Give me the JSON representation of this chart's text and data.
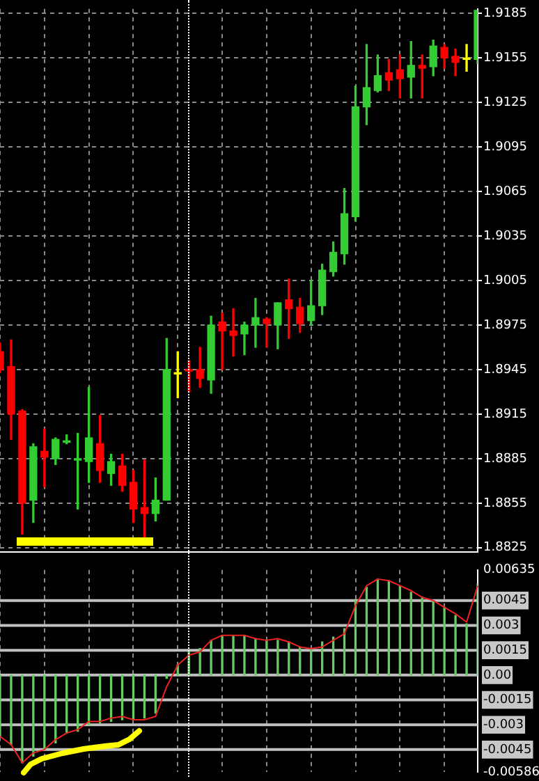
{
  "chart_data": [
    {
      "type": "candlestick",
      "categories": [
        null,
        null,
        null,
        null,
        null,
        null,
        null,
        null,
        null,
        null,
        null,
        null,
        null,
        null,
        null,
        null,
        null,
        null,
        null,
        null,
        null,
        null,
        null,
        null,
        null,
        null,
        null,
        null,
        null,
        null,
        null,
        null,
        null,
        null,
        null,
        null,
        null,
        null,
        null,
        null,
        null,
        null,
        null,
        null
      ],
      "ohlc": [
        [
          1.8957,
          1.8963,
          1.8943,
          1.8945
        ],
        [
          1.8947,
          1.8965,
          1.8898,
          1.8915
        ],
        [
          1.8917,
          1.8918,
          1.8834,
          1.8855
        ],
        [
          1.8857,
          1.8895,
          1.8842,
          1.8893
        ],
        [
          1.889,
          1.8905,
          1.8866,
          1.8886
        ],
        [
          1.8885,
          1.8899,
          1.8881,
          1.8898
        ],
        [
          1.8896,
          1.8901,
          1.8895,
          1.8897
        ],
        [
          1.8884,
          1.8902,
          1.8851,
          1.8885
        ],
        [
          1.8883,
          1.8933,
          1.8869,
          1.8899
        ],
        [
          1.8895,
          1.8914,
          1.8869,
          1.8877
        ],
        [
          1.8875,
          1.8888,
          1.8867,
          1.8883
        ],
        [
          1.888,
          1.8888,
          1.8863,
          1.8867
        ],
        [
          1.8869,
          1.8877,
          1.8842,
          1.8851
        ],
        [
          1.8852,
          1.8884,
          1.8831,
          1.8848
        ],
        [
          1.8848,
          1.8872,
          1.8843,
          1.8857
        ],
        [
          1.8857,
          1.8966,
          1.8857,
          1.8945
        ],
        [
          1.8942,
          1.8957,
          1.8926,
          1.8942
        ],
        [
          1.8945,
          1.8951,
          1.893,
          1.8944
        ],
        [
          1.8945,
          1.896,
          1.8933,
          1.8939
        ],
        [
          1.8938,
          1.8981,
          1.8929,
          1.8975
        ],
        [
          1.8977,
          1.8983,
          1.8945,
          1.8971
        ],
        [
          1.8971,
          1.8986,
          1.8954,
          1.8968
        ],
        [
          1.8969,
          1.8977,
          1.8955,
          1.8975
        ],
        [
          1.8975,
          1.8993,
          1.896,
          1.898
        ],
        [
          1.8979,
          1.898,
          1.896,
          1.8976
        ],
        [
          1.8975,
          1.899,
          1.8959,
          1.899
        ],
        [
          1.8992,
          1.9006,
          1.8966,
          1.8986
        ],
        [
          1.8987,
          1.8993,
          1.897,
          1.8976
        ],
        [
          1.8978,
          1.9005,
          1.8975,
          1.8988
        ],
        [
          1.8988,
          1.9016,
          1.8982,
          1.9012
        ],
        [
          1.9011,
          1.9031,
          1.9008,
          1.9024
        ],
        [
          1.9023,
          1.9067,
          1.9016,
          1.905
        ],
        [
          1.9048,
          1.9136,
          1.9045,
          1.9122
        ],
        [
          1.9122,
          1.9164,
          1.911,
          1.9135
        ],
        [
          1.9133,
          1.9157,
          1.9132,
          1.9143
        ],
        [
          1.9145,
          1.9154,
          1.9133,
          1.914
        ],
        [
          1.9147,
          1.9157,
          1.9128,
          1.9141
        ],
        [
          1.9142,
          1.9166,
          1.9128,
          1.915
        ],
        [
          1.915,
          1.9157,
          1.9128,
          1.9148
        ],
        [
          1.9149,
          1.9167,
          1.9143,
          1.9163
        ],
        [
          1.9162,
          1.9164,
          1.9148,
          1.9155
        ],
        [
          1.9156,
          1.9161,
          1.9143,
          1.9152
        ],
        [
          1.9154,
          1.9164,
          1.9146,
          1.9154
        ],
        [
          1.9154,
          1.9187,
          1.9151,
          1.9187
        ]
      ],
      "colors": [
        "#ff0000",
        "#ff0000",
        "#ff0000",
        "#33cc33",
        "#ff0000",
        "#33cc33",
        "#33cc33",
        "#33cc33",
        "#33cc33",
        "#ff0000",
        "#33cc33",
        "#ff0000",
        "#ff0000",
        "#ff0000",
        "#33cc33",
        "#33cc33",
        "#ffff00",
        "#ff0000",
        "#ff0000",
        "#33cc33",
        "#ff0000",
        "#ff0000",
        "#33cc33",
        "#33cc33",
        "#ff0000",
        "#33cc33",
        "#ff0000",
        "#ff0000",
        "#33cc33",
        "#33cc33",
        "#33cc33",
        "#33cc33",
        "#33cc33",
        "#33cc33",
        "#33cc33",
        "#ff0000",
        "#ff0000",
        "#33cc33",
        "#ff0000",
        "#33cc33",
        "#ff0000",
        "#ff0000",
        "#ffff00",
        "#33cc33"
      ],
      "ylim": [
        1.8822,
        1.9188
      ],
      "yticks": [
        1.8825,
        1.8855,
        1.8885,
        1.8915,
        1.8945,
        1.8975,
        1.9005,
        1.9035,
        1.9065,
        1.9095,
        1.9125,
        1.9155,
        1.9185
      ],
      "grid": true,
      "tick_labels": "y"
    },
    {
      "type": "bar",
      "categories": [
        null,
        null,
        null,
        null,
        null,
        null,
        null,
        null,
        null,
        null,
        null,
        null,
        null,
        null,
        null,
        null,
        null,
        null,
        null,
        null,
        null,
        null,
        null,
        null,
        null,
        null,
        null,
        null,
        null,
        null,
        null,
        null,
        null,
        null,
        null,
        null,
        null,
        null,
        null,
        null,
        null,
        null,
        null,
        null
      ],
      "series": [
        {
          "color": "#66cc66",
          "values": [
            -0.0037,
            -0.0042,
            -0.0053,
            -0.0049,
            -0.0045,
            -0.0041,
            -0.0035,
            -0.0034,
            -0.003,
            -0.0029,
            -0.0028,
            -0.0027,
            -0.0027,
            -0.0026,
            -0.0023,
            -0.0002,
            0.0006,
            0.0014,
            0.0016,
            0.0021,
            0.0024,
            0.0024,
            0.0024,
            0.0022,
            0.0021,
            0.0021,
            0.002,
            0.0017,
            0.0016,
            0.002,
            0.0023,
            0.0028,
            0.0045,
            0.0053,
            0.0058,
            0.0057,
            0.0054,
            0.005,
            0.0047,
            0.0045,
            0.0041,
            0.0036,
            0.0031,
            0.0055
          ]
        },
        {
          "type": "line",
          "color": "#ee2222",
          "values": [
            -0.0037,
            -0.0042,
            -0.0053,
            -0.0047,
            -0.0045,
            -0.0039,
            -0.0035,
            -0.0033,
            -0.0028,
            -0.0028,
            -0.0026,
            -0.0025,
            -0.0027,
            -0.0027,
            -0.0025,
            -0.0007,
            0.0006,
            0.0012,
            0.0014,
            0.0021,
            0.0024,
            0.0024,
            0.0024,
            0.0022,
            0.0021,
            0.0022,
            0.002,
            0.0017,
            0.0016,
            0.0017,
            0.0021,
            0.0025,
            0.0042,
            0.0054,
            0.0058,
            0.0057,
            0.0054,
            0.0051,
            0.0047,
            0.0045,
            0.0041,
            0.0037,
            0.0032,
            0.0054
          ]
        }
      ],
      "ylim": [
        -0.00586,
        0.00635
      ],
      "yticks": [
        -0.00586,
        -0.0045,
        -0.003,
        -0.0015,
        {
          "value": 0,
          "label": "0.00"
        },
        0.0015,
        0.003,
        0.0045,
        0.00635
      ],
      "grid": "x",
      "tick_labels": "y",
      "marker": "none",
      "line_style": "solid",
      "ref_lines": [
        {
          "axis": "y",
          "value": 0.0045,
          "color": "#c0c0c0"
        },
        {
          "axis": "y",
          "value": 0.003,
          "color": "#c0c0c0"
        },
        {
          "axis": "y",
          "value": 0.0015,
          "color": "#c0c0c0"
        },
        {
          "axis": "y",
          "value": 0,
          "color": "#c0c0c0"
        },
        {
          "axis": "y",
          "value": -0.0015,
          "color": "#c0c0c0"
        },
        {
          "axis": "y",
          "value": -0.003,
          "color": "#c0c0c0"
        },
        {
          "axis": "y",
          "value": -0.0045,
          "color": "#c0c0c0"
        }
      ]
    }
  ]
}
